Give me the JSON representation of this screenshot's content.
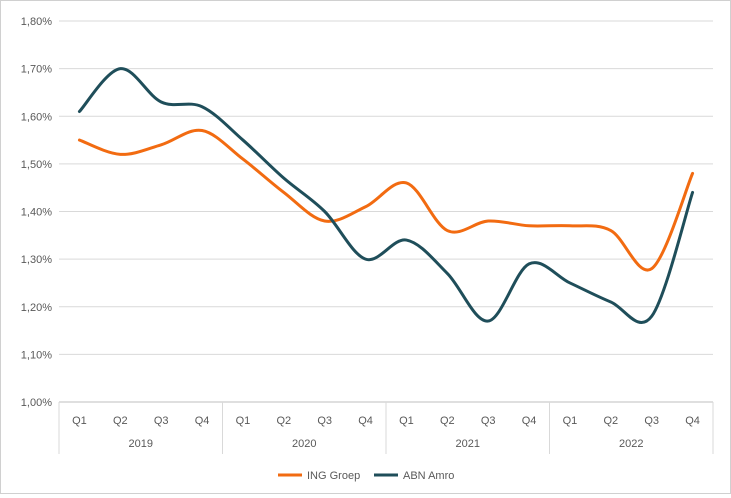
{
  "chart_data": {
    "type": "line",
    "title": "",
    "xlabel": "",
    "ylabel": "",
    "ylim": [
      1.0,
      1.8
    ],
    "y_ticks": [
      "1,00%",
      "1,10%",
      "1,20%",
      "1,30%",
      "1,40%",
      "1,50%",
      "1,60%",
      "1,70%",
      "1,80%"
    ],
    "grid": true,
    "legend_position": "bottom",
    "categories": [
      "Q1",
      "Q2",
      "Q3",
      "Q4",
      "Q1",
      "Q2",
      "Q3",
      "Q4",
      "Q1",
      "Q2",
      "Q3",
      "Q4",
      "Q1",
      "Q2",
      "Q3",
      "Q4"
    ],
    "year_groups": [
      {
        "label": "2019",
        "start": 0,
        "count": 4
      },
      {
        "label": "2020",
        "start": 4,
        "count": 4
      },
      {
        "label": "2021",
        "start": 8,
        "count": 4
      },
      {
        "label": "2022",
        "start": 12,
        "count": 4
      }
    ],
    "series": [
      {
        "name": "ING Groep",
        "color": "#f26b11",
        "values": [
          1.55,
          1.52,
          1.54,
          1.57,
          1.51,
          1.44,
          1.38,
          1.41,
          1.46,
          1.36,
          1.38,
          1.37,
          1.37,
          1.36,
          1.28,
          1.48
        ]
      },
      {
        "name": "ABN Amro",
        "color": "#1f4e5a",
        "values": [
          1.61,
          1.7,
          1.63,
          1.62,
          1.55,
          1.47,
          1.4,
          1.3,
          1.34,
          1.27,
          1.17,
          1.29,
          1.25,
          1.21,
          1.18,
          1.44
        ]
      }
    ]
  }
}
